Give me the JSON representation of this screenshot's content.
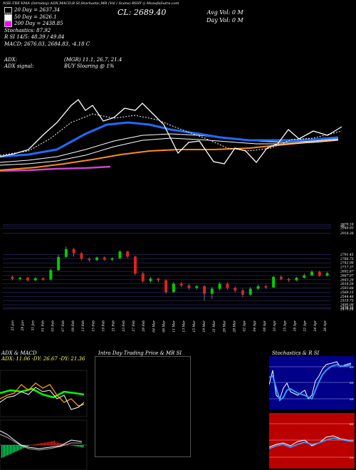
{
  "header": {
    "top_strip": "NSE:TRE  EMA  (Intraday) ADX,MACD,B  SI,Stochastic,MR  (Vol / Scans) BSSY  () MunafaSutra.com",
    "close_price": "CL: 2689.40",
    "avg_vol": "Avg Vol: 0   M",
    "day_vol": "Day Vol: 0   M"
  },
  "legend": [
    {
      "label": "20 Day = 2637.34",
      "color": "#ffffff"
    },
    {
      "label": "50 Day = 2626.1",
      "color": "#ffffff"
    },
    {
      "label": "200 Day = 2438.85",
      "color": "#ff00ff"
    }
  ],
  "indicators": {
    "stochastics": "Stochastics: 87.92",
    "rsi": "R        SI 14/5: 48.39 / 49.84",
    "macd": "MACD: 2676.03,  2684.83, -4.18  C",
    "adx": "ADX:",
    "adx_signal": "ADX  signal:",
    "mgr": "(MGR) 11.1, 26.7, 21.4",
    "buy": "BUY Sloaring @ 1%"
  },
  "price_axis": [
    "2970.18",
    "29",
    "2948.93",
    "2918.38",
    "2791.45",
    "2766.75",
    "2742.98",
    "2717.37",
    "2692.67",
    "2667.97",
    "2643.28",
    "2618.58",
    "2593.88",
    "2569.15",
    "2544.48",
    "2519.75",
    "2495.08",
    "2478.34",
    "2470.34"
  ],
  "date_axis": [
    "25 Jan",
    "29 Jan",
    "31 Jan",
    "01 Feb",
    "05 Feb",
    "07 Feb",
    "09 Feb",
    "13 Feb",
    "15 Feb",
    "19 Feb",
    "21 Feb",
    "23 Feb",
    "27 Feb",
    "29 Feb",
    "04 Mar",
    "06 Mar",
    "11 Mar",
    "13 Mar",
    "15 Mar",
    "19 Mar",
    "21 Mar",
    "26 Mar",
    "28 Mar",
    "02 Apr",
    "04 Apr",
    "08 Apr",
    "10 Apr",
    "15 Apr",
    "18 Apr",
    "22 Apr",
    "24 Apr",
    "26 Apr"
  ],
  "candles": [
    {
      "o": 2660,
      "c": 2648,
      "h": 2668,
      "l": 2640
    },
    {
      "o": 2648,
      "c": 2655,
      "h": 2660,
      "l": 2640
    },
    {
      "o": 2655,
      "c": 2640,
      "h": 2660,
      "l": 2632
    },
    {
      "o": 2640,
      "c": 2652,
      "h": 2658,
      "l": 2636
    },
    {
      "o": 2652,
      "c": 2645,
      "h": 2656,
      "l": 2638
    },
    {
      "o": 2645,
      "c": 2700,
      "h": 2710,
      "l": 2640
    },
    {
      "o": 2700,
      "c": 2778,
      "h": 2790,
      "l": 2695
    },
    {
      "o": 2778,
      "c": 2825,
      "h": 2840,
      "l": 2770
    },
    {
      "o": 2825,
      "c": 2800,
      "h": 2830,
      "l": 2780
    },
    {
      "o": 2800,
      "c": 2768,
      "h": 2805,
      "l": 2758
    },
    {
      "o": 2768,
      "c": 2760,
      "h": 2775,
      "l": 2750
    },
    {
      "o": 2760,
      "c": 2775,
      "h": 2780,
      "l": 2752
    },
    {
      "o": 2775,
      "c": 2762,
      "h": 2780,
      "l": 2755
    },
    {
      "o": 2762,
      "c": 2770,
      "h": 2776,
      "l": 2752
    },
    {
      "o": 2770,
      "c": 2810,
      "h": 2818,
      "l": 2765
    },
    {
      "o": 2810,
      "c": 2780,
      "h": 2815,
      "l": 2770
    },
    {
      "o": 2780,
      "c": 2680,
      "h": 2785,
      "l": 2670
    },
    {
      "o": 2680,
      "c": 2635,
      "h": 2690,
      "l": 2625
    },
    {
      "o": 2635,
      "c": 2650,
      "h": 2660,
      "l": 2625
    },
    {
      "o": 2650,
      "c": 2640,
      "h": 2655,
      "l": 2630
    },
    {
      "o": 2640,
      "c": 2570,
      "h": 2645,
      "l": 2560
    },
    {
      "o": 2570,
      "c": 2620,
      "h": 2630,
      "l": 2565
    },
    {
      "o": 2620,
      "c": 2610,
      "h": 2630,
      "l": 2600
    },
    {
      "o": 2610,
      "c": 2595,
      "h": 2618,
      "l": 2585
    },
    {
      "o": 2595,
      "c": 2605,
      "h": 2612,
      "l": 2585
    },
    {
      "o": 2605,
      "c": 2560,
      "h": 2610,
      "l": 2520
    },
    {
      "o": 2560,
      "c": 2590,
      "h": 2600,
      "l": 2530
    },
    {
      "o": 2590,
      "c": 2620,
      "h": 2630,
      "l": 2580
    },
    {
      "o": 2620,
      "c": 2595,
      "h": 2628,
      "l": 2585
    },
    {
      "o": 2595,
      "c": 2580,
      "h": 2602,
      "l": 2570
    },
    {
      "o": 2580,
      "c": 2555,
      "h": 2590,
      "l": 2540
    },
    {
      "o": 2555,
      "c": 2590,
      "h": 2600,
      "l": 2548
    },
    {
      "o": 2590,
      "c": 2605,
      "h": 2615,
      "l": 2583
    },
    {
      "o": 2605,
      "c": 2598,
      "h": 2612,
      "l": 2590
    },
    {
      "o": 2598,
      "c": 2660,
      "h": 2668,
      "l": 2595
    },
    {
      "o": 2660,
      "c": 2648,
      "h": 2668,
      "l": 2640
    },
    {
      "o": 2648,
      "c": 2640,
      "h": 2655,
      "l": 2630
    },
    {
      "o": 2640,
      "c": 2655,
      "h": 2660,
      "l": 2635
    },
    {
      "o": 2655,
      "c": 2670,
      "h": 2680,
      "l": 2650
    },
    {
      "o": 2670,
      "c": 2690,
      "h": 2700,
      "l": 2665
    },
    {
      "o": 2690,
      "c": 2668,
      "h": 2695,
      "l": 2660
    },
    {
      "o": 2668,
      "c": 2682,
      "h": 2690,
      "l": 2662
    }
  ],
  "panels": {
    "adx_title": "ADX  & MACD",
    "adx_values": "ADX: 11.06  -DY: 26.67 -DY: 21.36",
    "intraday_title": "Intra  Day Trading Price  & MR                    SI",
    "stoch_title": "Stochastics & R                    SI"
  },
  "stoch_axis": [
    "80",
    "50",
    "20"
  ],
  "rsi_axis": [
    "80",
    "50",
    "20"
  ]
}
